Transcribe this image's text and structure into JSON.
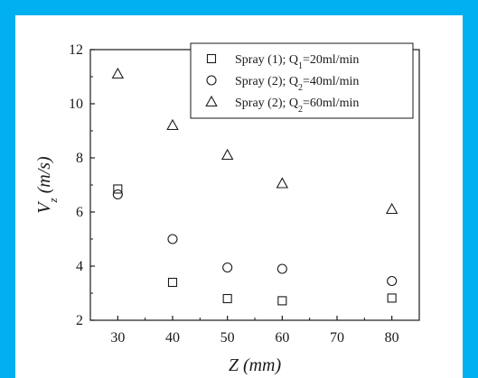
{
  "colors": {
    "border": "#00b0f0",
    "background": "#ffffff",
    "ink": "#1a1a1a"
  },
  "chart_data": {
    "type": "scatter",
    "title": "",
    "xlabel": "Z (mm)",
    "ylabel": "Vz (m/s)",
    "xlim": [
      25,
      85
    ],
    "ylim": [
      2,
      12
    ],
    "xticks": [
      30,
      40,
      50,
      60,
      70,
      80
    ],
    "yticks": [
      2,
      4,
      6,
      8,
      10,
      12
    ],
    "legend_position": "top-right",
    "series": [
      {
        "name": "Spray (1); Q1=20ml/min",
        "marker": "square",
        "x": [
          30,
          40,
          50,
          60,
          80
        ],
        "y": [
          6.85,
          3.4,
          2.8,
          2.72,
          2.82
        ]
      },
      {
        "name": "Spray (2); Q2=40ml/min",
        "marker": "circle",
        "x": [
          30,
          40,
          50,
          60,
          80
        ],
        "y": [
          6.65,
          5.0,
          3.95,
          3.9,
          3.45
        ]
      },
      {
        "name": "Spray (2); Q2=60ml/min",
        "marker": "triangle",
        "x": [
          30,
          40,
          50,
          60,
          80
        ],
        "y": [
          11.1,
          9.2,
          8.1,
          7.05,
          6.1
        ]
      }
    ],
    "legend": [
      {
        "prefix": "Spray (1); Q",
        "sub": "1",
        "suffix": "=20ml/min"
      },
      {
        "prefix": "Spray (2); Q",
        "sub": "2",
        "suffix": "=40ml/min"
      },
      {
        "prefix": "Spray (2); Q",
        "sub": "2",
        "suffix": "=60ml/min"
      }
    ],
    "ylabel_parts": {
      "main": "V",
      "sub": "z",
      "rest": " (m/s)"
    }
  }
}
